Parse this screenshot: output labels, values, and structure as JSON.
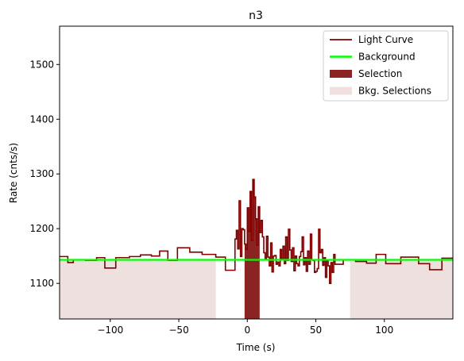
{
  "chart_data": {
    "type": "line",
    "title": "n3",
    "xlabel": "Time (s)",
    "ylabel": "Rate (cnts/s)",
    "xlim": [
      -137,
      150
    ],
    "ylim": [
      1035,
      1570
    ],
    "xticks": [
      -100,
      -50,
      0,
      50,
      100
    ],
    "yticks": [
      1100,
      1200,
      1300,
      1400,
      1500
    ],
    "grid": false,
    "legend_position": "top-right",
    "legend": [
      {
        "label": "Light Curve",
        "kind": "line",
        "color": "#800000"
      },
      {
        "label": "Background",
        "kind": "line",
        "color": "#00ff00"
      },
      {
        "label": "Selection",
        "kind": "patch",
        "color": "#8b2323"
      },
      {
        "label": "Bkg. Selections",
        "kind": "patch",
        "color": "#f0e0e0"
      }
    ],
    "colors": {
      "light_curve": "#800000",
      "background": "#00ff00",
      "selection": "#8b2323",
      "bkg_selection": "#efe0e0"
    },
    "background_level": 1143,
    "selection": {
      "x_start": -2,
      "x_end": 9
    },
    "bkg_selections": [
      {
        "x_start": -137,
        "x_end": -23
      },
      {
        "x_start": 75,
        "x_end": 150
      }
    ],
    "light_curve": {
      "x": [
        -137,
        -131,
        -127,
        -118,
        -110,
        -104,
        -96,
        -86,
        -78,
        -70,
        -64,
        -58,
        -51,
        -42,
        -33,
        -23,
        -16,
        -9,
        -8,
        -7,
        -6,
        -5,
        -4,
        -3,
        -2,
        -1,
        0,
        1,
        2,
        3,
        4,
        5,
        6,
        7,
        8,
        9,
        10,
        11,
        12,
        13,
        14,
        15,
        16,
        17,
        18,
        19,
        20,
        21,
        22,
        23,
        24,
        25,
        26,
        27,
        28,
        29,
        30,
        31,
        32,
        33,
        34,
        35,
        36,
        37,
        38,
        39,
        40,
        41,
        42,
        43,
        44,
        45,
        46,
        47,
        48,
        49,
        50,
        51,
        52,
        53,
        54,
        55,
        56,
        57,
        58,
        59,
        60,
        61,
        62,
        63,
        64,
        70,
        79,
        87,
        94,
        101,
        112,
        125,
        133,
        142,
        150
      ],
      "y": [
        1149,
        1138,
        1143,
        1142,
        1147,
        1128,
        1147,
        1149,
        1152,
        1150,
        1159,
        1142,
        1165,
        1157,
        1153,
        1148,
        1124,
        1181,
        1197,
        1163,
        1251,
        1149,
        1200,
        1198,
        1172,
        1162,
        1238,
        1195,
        1268,
        1178,
        1290,
        1258,
        1218,
        1170,
        1240,
        1193,
        1215,
        1185,
        1156,
        1143,
        1186,
        1148,
        1132,
        1174,
        1121,
        1150,
        1151,
        1135,
        1139,
        1132,
        1162,
        1143,
        1168,
        1136,
        1185,
        1142,
        1199,
        1161,
        1140,
        1165,
        1123,
        1150,
        1136,
        1132,
        1149,
        1158,
        1185,
        1134,
        1147,
        1122,
        1159,
        1135,
        1190,
        1143,
        1142,
        1120,
        1122,
        1127,
        1199,
        1156,
        1162,
        1133,
        1147,
        1111,
        1143,
        1132,
        1100,
        1138,
        1120,
        1153,
        1135,
        1143,
        1140,
        1137,
        1153,
        1136,
        1148,
        1136,
        1125,
        1146,
        1146
      ]
    }
  }
}
